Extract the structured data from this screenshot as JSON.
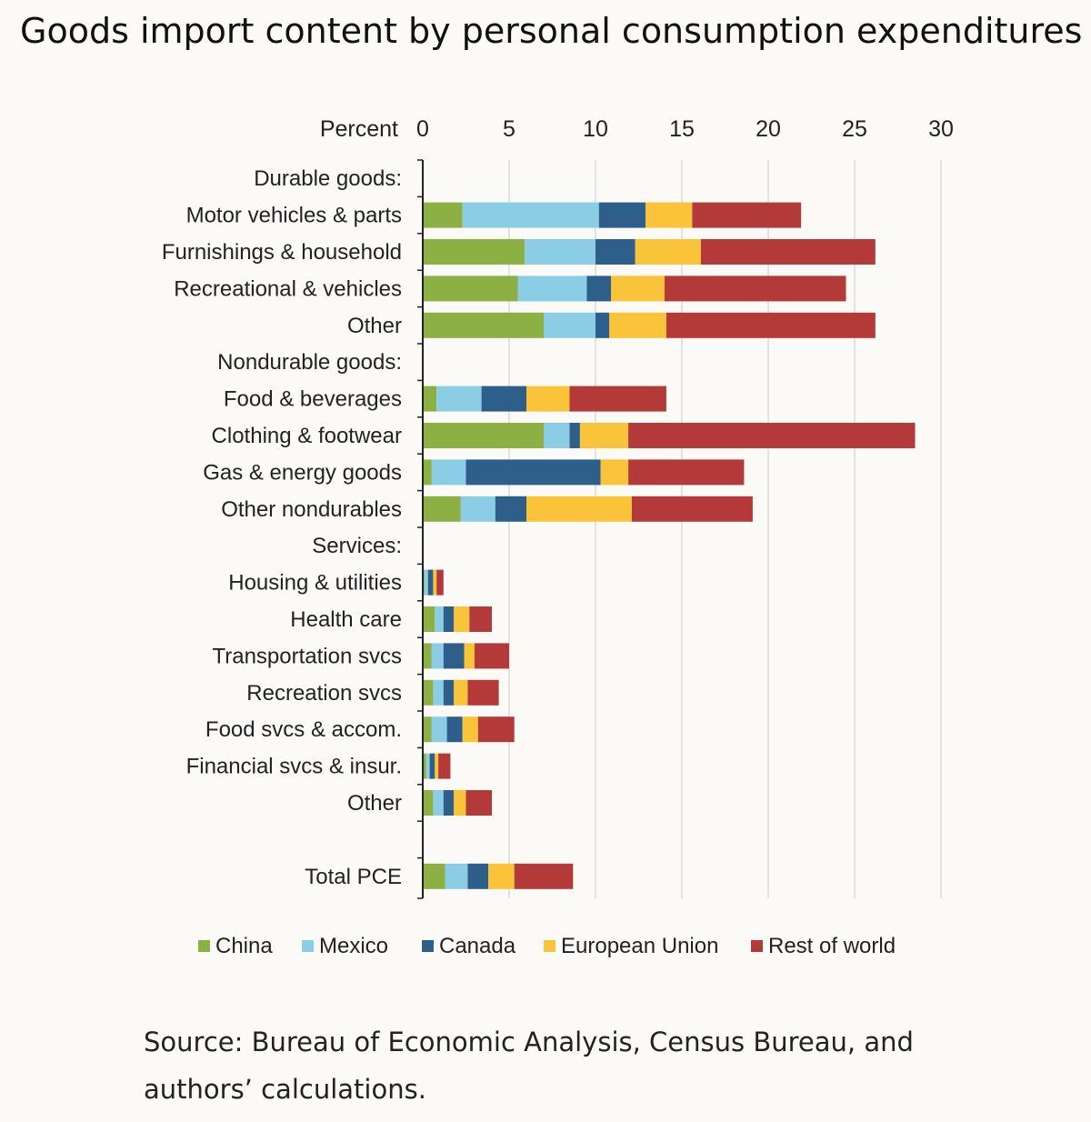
{
  "title": "Goods import content by personal consumption expenditures",
  "source": "Source: Bureau of Economic Analysis, Census Bureau, and authors’ calculations.",
  "colors": {
    "China": "#8cb043",
    "Mexico": "#8ccde6",
    "Canada": "#2e5f8a",
    "European Union": "#f9c33a",
    "Rest of world": "#b43a3a"
  },
  "chart_data": {
    "type": "bar",
    "orientation": "horizontal",
    "stacked": true,
    "xlabel": "Percent",
    "xlim": [
      0,
      30
    ],
    "xticks": [
      0,
      5,
      10,
      15,
      20,
      25,
      30
    ],
    "grid": true,
    "legend_position": "bottom",
    "series_names": [
      "China",
      "Mexico",
      "Canada",
      "European Union",
      "Rest of world"
    ],
    "rows": [
      {
        "label": "Durable goods:",
        "header": true
      },
      {
        "label": "Motor vehicles & parts",
        "values": [
          2.3,
          7.9,
          2.7,
          2.7,
          6.3
        ]
      },
      {
        "label": "Furnishings & household",
        "values": [
          5.9,
          4.1,
          2.3,
          3.8,
          10.1
        ]
      },
      {
        "label": "Recreational & vehicles",
        "values": [
          5.5,
          4.0,
          1.4,
          3.1,
          10.5
        ]
      },
      {
        "label": "Other",
        "values": [
          7.0,
          3.0,
          0.8,
          3.3,
          12.1
        ]
      },
      {
        "label": "Nondurable goods:",
        "header": true
      },
      {
        "label": "Food & beverages",
        "values": [
          0.8,
          2.6,
          2.6,
          2.5,
          5.6
        ]
      },
      {
        "label": "Clothing & footwear",
        "values": [
          7.0,
          1.5,
          0.6,
          2.8,
          16.6
        ]
      },
      {
        "label": "Gas & energy goods",
        "values": [
          0.5,
          2.0,
          7.8,
          1.6,
          6.7
        ]
      },
      {
        "label": "Other nondurables",
        "values": [
          2.2,
          2.0,
          1.8,
          6.1,
          7.0
        ]
      },
      {
        "label": "Services:",
        "header": true
      },
      {
        "label": "Housing & utilities",
        "values": [
          0.1,
          0.2,
          0.3,
          0.2,
          0.4
        ]
      },
      {
        "label": "Health care",
        "values": [
          0.7,
          0.5,
          0.6,
          0.9,
          1.3
        ]
      },
      {
        "label": "Transportation svcs",
        "values": [
          0.5,
          0.7,
          1.2,
          0.6,
          2.0
        ]
      },
      {
        "label": "Recreation svcs",
        "values": [
          0.6,
          0.6,
          0.6,
          0.8,
          1.8
        ]
      },
      {
        "label": "Food svcs & accom.",
        "values": [
          0.5,
          0.9,
          0.9,
          0.9,
          2.1
        ]
      },
      {
        "label": "Financial svcs & insur.",
        "values": [
          0.2,
          0.2,
          0.3,
          0.2,
          0.7
        ]
      },
      {
        "label": "Other",
        "values": [
          0.6,
          0.6,
          0.6,
          0.7,
          1.5
        ]
      },
      {
        "label": "",
        "spacer": true
      },
      {
        "label": "Total PCE",
        "values": [
          1.3,
          1.3,
          1.2,
          1.5,
          3.4
        ]
      }
    ]
  }
}
